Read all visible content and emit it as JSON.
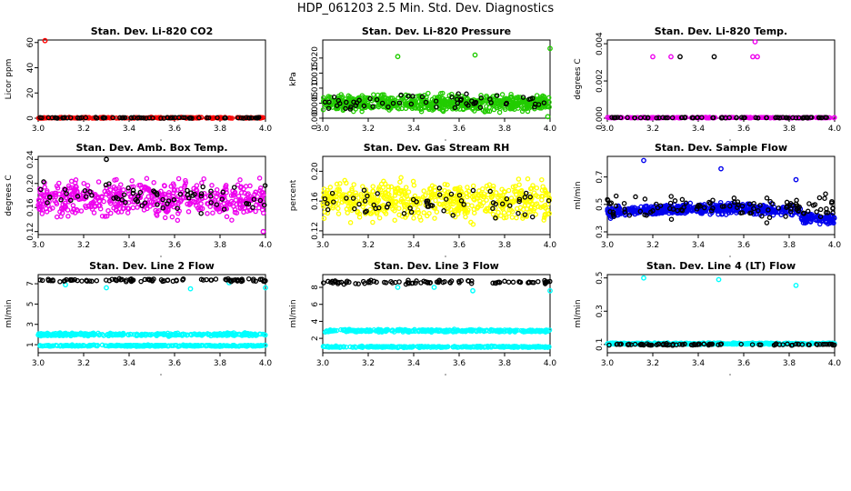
{
  "title": "HDP_061203  2.5 Min. Std. Dev. Diagnostics",
  "chart_data": [
    {
      "type": "scatter",
      "title": "Stan. Dev. Li-820 CO2",
      "xlabel": "",
      "ylabel": "Licor ppm",
      "xlim": [
        3.0,
        4.0
      ],
      "ylim": [
        0,
        62
      ],
      "xticks": [
        "3.0",
        "3.2",
        "3.4",
        "3.6",
        "3.8",
        "4.0"
      ],
      "yticks": [
        0,
        20,
        40,
        60
      ],
      "ytick_labels": [
        "0",
        "20",
        "40",
        "60"
      ],
      "series": [
        {
          "name": "primary",
          "color": "#ff0000",
          "base": 0.3,
          "jitter": 0.4,
          "n": 220,
          "outliers": [
            [
              3.03,
              61.5
            ]
          ]
        },
        {
          "name": "reference",
          "color": "#000000",
          "base": 0.3,
          "jitter": 0.3,
          "n": 70,
          "outliers": []
        }
      ]
    },
    {
      "type": "scatter",
      "title": "Stan. Dev. Li-820 Pressure",
      "xlabel": "",
      "ylabel": "kPa",
      "xlim": [
        3.0,
        4.0
      ],
      "ylim": [
        0,
        0.026
      ],
      "xticks": [
        "3.0",
        "3.2",
        "3.4",
        "3.6",
        "3.8",
        "4.0"
      ],
      "yticks": [
        0,
        0.005,
        0.01,
        0.015,
        0.02
      ],
      "ytick_labels": [
        "0.000",
        "0.005",
        "0.010",
        "0.015",
        "0.020"
      ],
      "series": [
        {
          "name": "primary",
          "color": "#22cc00",
          "base": 0.005,
          "jitter": 0.0022,
          "n": 650,
          "outliers": [
            [
              3.33,
              0.0205
            ],
            [
              3.67,
              0.021
            ],
            [
              4.0,
              0.0232
            ],
            [
              3.99,
              0.0005
            ]
          ]
        },
        {
          "name": "reference",
          "color": "#000000",
          "base": 0.0055,
          "jitter": 0.002,
          "n": 60,
          "outliers": []
        }
      ]
    },
    {
      "type": "scatter",
      "title": "Stan. Dev. Li-820 Temp.",
      "xlabel": "",
      "ylabel": "degrees C",
      "xlim": [
        3.0,
        4.0
      ],
      "ylim": [
        0,
        0.0042
      ],
      "xticks": [
        "3.0",
        "3.2",
        "3.4",
        "3.6",
        "3.8",
        "4.0"
      ],
      "yticks": [
        0,
        0.002,
        0.004
      ],
      "ytick_labels": [
        "0.000",
        "0.002",
        "0.004"
      ],
      "series": [
        {
          "name": "primary",
          "color": "#ee00ee",
          "base": 3e-05,
          "jitter": 2e-05,
          "n": 220,
          "outliers": [
            [
              3.2,
              0.0033
            ],
            [
              3.28,
              0.0033
            ],
            [
              3.64,
              0.0033
            ],
            [
              3.66,
              0.0033
            ],
            [
              3.65,
              0.0041
            ]
          ]
        },
        {
          "name": "reference",
          "color": "#000000",
          "base": 3e-05,
          "jitter": 2e-05,
          "n": 70,
          "outliers": [
            [
              3.32,
              0.0033
            ],
            [
              3.47,
              0.0033
            ]
          ]
        }
      ]
    },
    {
      "type": "scatter",
      "title": "Stan. Dev. Amb. Box Temp.",
      "xlabel": "",
      "ylabel": "degrees C",
      "xlim": [
        3.0,
        4.0
      ],
      "ylim": [
        0.115,
        0.245
      ],
      "xticks": [
        "3.0",
        "3.2",
        "3.4",
        "3.6",
        "3.8",
        "4.0"
      ],
      "yticks": [
        0.12,
        0.16,
        0.2,
        0.24
      ],
      "ytick_labels": [
        "0.12",
        "0.16",
        "0.20",
        "0.24"
      ],
      "series": [
        {
          "name": "primary",
          "color": "#ee00ee",
          "base": 0.175,
          "jitter": 0.024,
          "n": 520,
          "outliers": [
            [
              3.99,
              0.12
            ]
          ]
        },
        {
          "name": "reference",
          "color": "#000000",
          "base": 0.175,
          "jitter": 0.02,
          "n": 70,
          "outliers": [
            [
              3.3,
              0.24
            ]
          ]
        }
      ]
    },
    {
      "type": "scatter",
      "title": "Stan. Dev. Gas Stream RH",
      "xlabel": "",
      "ylabel": "percent",
      "xlim": [
        3.0,
        4.0
      ],
      "ylim": [
        0.115,
        0.22
      ],
      "xticks": [
        "3.0",
        "3.2",
        "3.4",
        "3.6",
        "3.8",
        "4.0"
      ],
      "yticks": [
        0.12,
        0.16,
        0.2
      ],
      "ytick_labels": [
        "0.12",
        "0.16",
        "0.20"
      ],
      "series": [
        {
          "name": "primary",
          "color": "#ffff00",
          "base": 0.16,
          "jitter": 0.021,
          "n": 560,
          "outliers": []
        },
        {
          "name": "reference",
          "color": "#000000",
          "base": 0.158,
          "jitter": 0.018,
          "n": 60,
          "outliers": []
        }
      ]
    },
    {
      "type": "scatter",
      "title": "Stan. Dev. Sample Flow",
      "xlabel": "",
      "ylabel": "ml/min",
      "xlim": [
        3.0,
        4.0
      ],
      "ylim": [
        0.28,
        0.85
      ],
      "xticks": [
        "3.0",
        "3.2",
        "3.4",
        "3.6",
        "3.8",
        "4.0"
      ],
      "yticks": [
        0.3,
        0.5,
        0.7
      ],
      "ytick_labels": [
        "0.3",
        "0.5",
        "0.7"
      ],
      "series": [
        {
          "name": "primary",
          "color": "#0000ee",
          "base": 0.44,
          "jitter": 0.03,
          "n": 650,
          "outliers": [
            [
              3.16,
              0.82
            ],
            [
              3.5,
              0.76
            ],
            [
              3.83,
              0.68
            ]
          ]
        },
        {
          "name": "reference",
          "color": "#000000",
          "base": 0.48,
          "jitter": 0.07,
          "n": 110,
          "outliers": []
        }
      ]
    },
    {
      "type": "scatter",
      "title": "Stan. Dev. Line 2 Flow",
      "xlabel": "",
      "ylabel": "ml/min",
      "xlim": [
        3.0,
        4.0
      ],
      "ylim": [
        0.2,
        7.9
      ],
      "xticks": [
        "3.0",
        "3.2",
        "3.4",
        "3.6",
        "3.8",
        "4.0"
      ],
      "yticks": [
        1,
        3,
        5,
        7
      ],
      "ytick_labels": [
        "1",
        "3",
        "5",
        "7"
      ],
      "series": [
        {
          "name": "cyan-high",
          "color": "#00ffff",
          "base": 2.0,
          "jitter": 0.12,
          "n": 300,
          "outliers": []
        },
        {
          "name": "cyan-low",
          "color": "#00ffff",
          "base": 0.9,
          "jitter": 0.06,
          "n": 300,
          "outliers": [
            [
              3.12,
              6.9
            ],
            [
              3.3,
              6.6
            ],
            [
              3.67,
              6.5
            ],
            [
              3.84,
              7.1
            ],
            [
              4.0,
              6.6
            ]
          ]
        },
        {
          "name": "reference",
          "color": "#000000",
          "base": 7.35,
          "jitter": 0.12,
          "n": 90,
          "outliers": []
        }
      ]
    },
    {
      "type": "scatter",
      "title": "Stan. Dev. Line 3 Flow",
      "xlabel": "",
      "ylabel": "ml/min",
      "xlim": [
        3.0,
        4.0
      ],
      "ylim": [
        0.3,
        9.5
      ],
      "xticks": [
        "3.0",
        "3.2",
        "3.4",
        "3.6",
        "3.8",
        "4.0"
      ],
      "yticks": [
        2,
        4,
        6,
        8
      ],
      "ytick_labels": [
        "2",
        "4",
        "6",
        "8"
      ],
      "series": [
        {
          "name": "cyan-high",
          "color": "#00ffff",
          "base": 2.9,
          "jitter": 0.13,
          "n": 300,
          "outliers": []
        },
        {
          "name": "cyan-low",
          "color": "#00ffff",
          "base": 1.0,
          "jitter": 0.07,
          "n": 300,
          "outliers": [
            [
              3.33,
              8.0
            ],
            [
              3.49,
              8.0
            ],
            [
              3.66,
              7.6
            ],
            [
              4.0,
              7.6
            ]
          ]
        },
        {
          "name": "reference",
          "color": "#000000",
          "base": 8.6,
          "jitter": 0.18,
          "n": 90,
          "outliers": []
        }
      ]
    },
    {
      "type": "scatter",
      "title": "Stan. Dev. Line 4 (LT) Flow",
      "xlabel": "",
      "ylabel": "ml/min",
      "xlim": [
        3.0,
        4.0
      ],
      "ylim": [
        0.05,
        0.52
      ],
      "xticks": [
        "3.0",
        "3.2",
        "3.4",
        "3.6",
        "3.8",
        "4.0"
      ],
      "yticks": [
        0.1,
        0.3,
        0.5
      ],
      "ytick_labels": [
        "0.1",
        "0.3",
        "0.5"
      ],
      "series": [
        {
          "name": "primary",
          "color": "#00ffff",
          "base": 0.105,
          "jitter": 0.004,
          "n": 400,
          "outliers": [
            [
              3.16,
              0.5
            ],
            [
              3.49,
              0.49
            ],
            [
              3.83,
              0.455
            ]
          ]
        },
        {
          "name": "reference",
          "color": "#000000",
          "base": 0.1,
          "jitter": 0.005,
          "n": 90,
          "outliers": []
        }
      ]
    }
  ]
}
